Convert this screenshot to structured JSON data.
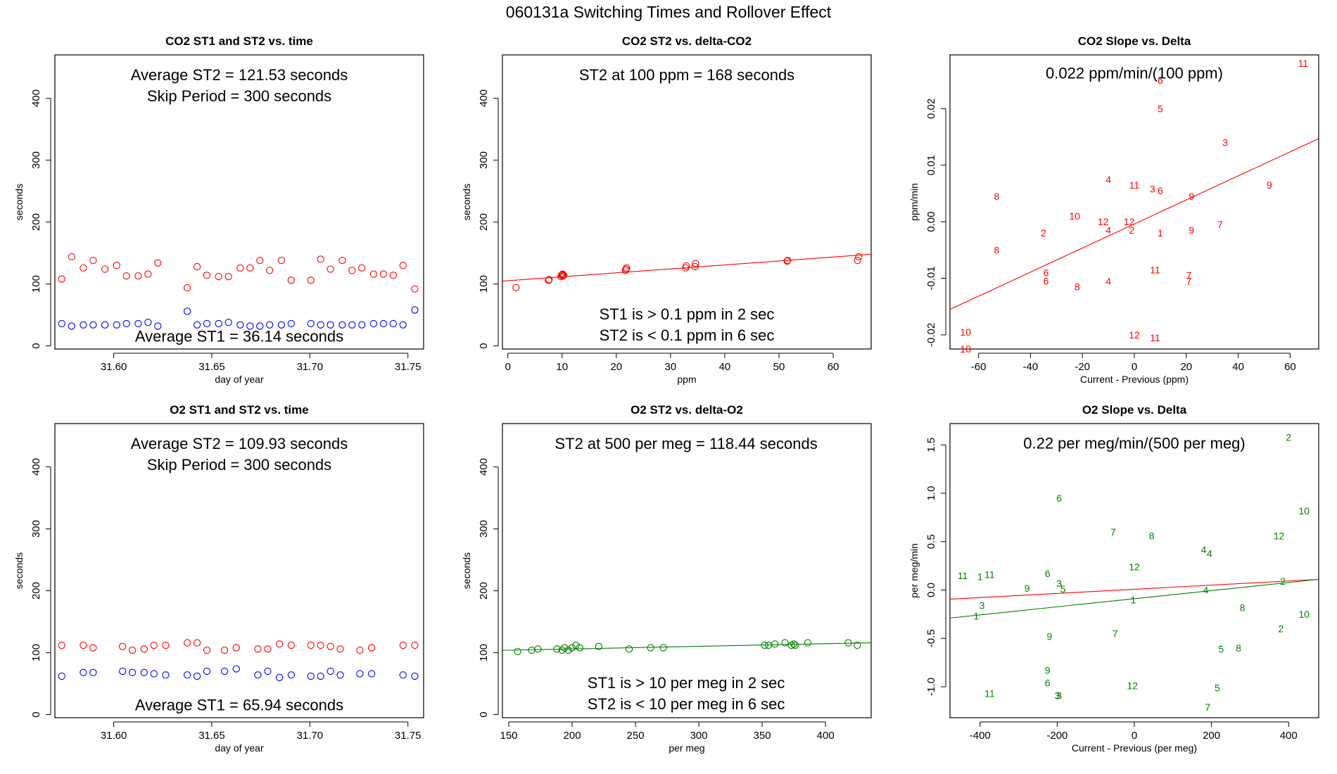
{
  "title": "060131a   Switching Times and Rollover Effect",
  "colors": {
    "red": "#ff0000",
    "blue": "#0000ff",
    "green": "#008000",
    "axis": "#000000"
  },
  "chart_data": [
    {
      "type": "scatter",
      "title": "CO2 ST1 and ST2 vs. time",
      "xlabel": "day of year",
      "ylabel": "seconds",
      "xlim": [
        31.57,
        31.758
      ],
      "ylim": [
        -5,
        470
      ],
      "xticks": [
        31.6,
        31.65,
        31.7,
        31.75
      ],
      "xtick_labels": [
        "31.60",
        "31.65",
        "31.70",
        "31.75"
      ],
      "yticks": [
        0,
        100,
        200,
        300,
        400
      ],
      "ytick_labels": [
        "0",
        "100",
        "200",
        "300",
        "400"
      ],
      "annotations": [
        {
          "text": "Average ST2 =  121.53  seconds",
          "x": 31.664,
          "y": 438
        },
        {
          "text": "Skip Period =  300  seconds",
          "x": 31.664,
          "y": 404
        },
        {
          "text": "Average ST1 =  36.14  seconds",
          "x": 31.664,
          "y": 16
        }
      ],
      "series": [
        {
          "marker": "circle",
          "color": "red",
          "x": [
            31.5735,
            31.5785,
            31.5845,
            31.5895,
            31.5955,
            31.6015,
            31.6065,
            31.6125,
            31.6175,
            31.6225,
            31.6375,
            31.6425,
            31.6475,
            31.6535,
            31.6585,
            31.6645,
            31.6695,
            31.6745,
            31.6795,
            31.6855,
            31.6905,
            31.7005,
            31.7055,
            31.7105,
            31.7165,
            31.7215,
            31.7265,
            31.7325,
            31.7375,
            31.7425,
            31.7475,
            31.7535
          ],
          "y": [
            108,
            144,
            126,
            138,
            124,
            130,
            113,
            113,
            116,
            134,
            94,
            128,
            114,
            112,
            112,
            126,
            126,
            138,
            122,
            138,
            106,
            106,
            140,
            124,
            138,
            122,
            126,
            116,
            116,
            114,
            130,
            92
          ]
        },
        {
          "marker": "circle",
          "color": "blue",
          "x": [
            31.5735,
            31.5785,
            31.5845,
            31.5895,
            31.5955,
            31.6015,
            31.6065,
            31.6125,
            31.6175,
            31.6225,
            31.6375,
            31.6425,
            31.6475,
            31.6535,
            31.6585,
            31.6645,
            31.6695,
            31.6745,
            31.6795,
            31.6855,
            31.6905,
            31.7005,
            31.7055,
            31.7105,
            31.7165,
            31.7215,
            31.7265,
            31.7325,
            31.7375,
            31.7425,
            31.7475,
            31.7535
          ],
          "y": [
            36,
            32,
            34,
            34,
            34,
            34,
            36,
            36,
            38,
            32,
            56,
            34,
            36,
            36,
            38,
            34,
            32,
            32,
            34,
            34,
            36,
            36,
            34,
            34,
            34,
            34,
            34,
            36,
            36,
            36,
            34,
            58
          ]
        }
      ]
    },
    {
      "type": "scatter",
      "title": "CO2 ST2 vs. delta-CO2",
      "xlabel": "ppm",
      "ylabel": "seconds",
      "xlim": [
        -1,
        67
      ],
      "ylim": [
        -5,
        470
      ],
      "xticks": [
        0,
        10,
        20,
        30,
        40,
        50,
        60
      ],
      "xtick_labels": [
        "0",
        "10",
        "20",
        "30",
        "40",
        "50",
        "60"
      ],
      "yticks": [
        0,
        100,
        200,
        300,
        400
      ],
      "ytick_labels": [
        "0",
        "100",
        "200",
        "300",
        "400"
      ],
      "annotations": [
        {
          "text": "ST2 at 100 ppm =  168  seconds",
          "x": 33,
          "y": 438
        },
        {
          "text": "ST1 is > 0.1 ppm in 2 sec",
          "x": 33,
          "y": 52
        },
        {
          "text": "ST2 is < 0.1 ppm in 6 sec",
          "x": 33,
          "y": 18
        }
      ],
      "series": [
        {
          "marker": "circle",
          "color": "red",
          "x": [
            1.5,
            7.5,
            7.6,
            9.8,
            9.9,
            10.0,
            10.1,
            10.2,
            10.3,
            21.7,
            21.8,
            21.9,
            32.8,
            32.9,
            34.5,
            34.6,
            51.5,
            51.6,
            64.5,
            64.7
          ],
          "y": [
            94,
            106,
            107,
            112,
            114,
            115,
            116,
            113,
            114,
            122,
            124,
            126,
            126,
            129,
            128,
            133,
            137,
            138,
            138,
            144
          ]
        }
      ],
      "fit_line": {
        "color": "red",
        "x": [
          -1,
          67
        ],
        "y": [
          104.6,
          148
        ]
      }
    },
    {
      "type": "scatter",
      "title": "CO2 Slope vs. Delta",
      "xlabel": "Current - Previous (ppm)",
      "ylabel": "ppm/min",
      "xlim": [
        -71,
        71
      ],
      "ylim": [
        -0.0225,
        0.0295
      ],
      "xticks": [
        -60,
        -40,
        -20,
        0,
        20,
        40,
        60
      ],
      "xtick_labels": [
        "-60",
        "-40",
        "-20",
        "0",
        "20",
        "40",
        "60"
      ],
      "yticks": [
        -0.02,
        -0.01,
        0.0,
        0.01,
        0.02
      ],
      "ytick_labels": [
        "-0.02",
        "-0.01",
        "0.00",
        "0.01",
        "0.02"
      ],
      "annotations": [
        {
          "text": "0.022  ppm/min/(100 ppm)",
          "x": 0,
          "y": 0.0263
        }
      ],
      "series": [
        {
          "marker": "label",
          "color": "red",
          "x": [
            65,
            10,
            10,
            35,
            -53,
            -10,
            0,
            7,
            10,
            -23,
            22,
            52,
            -53,
            -35,
            -12,
            -2,
            -10,
            -1,
            10,
            22,
            33,
            -34,
            -34,
            -22,
            -10,
            8,
            21,
            21,
            -65,
            -65,
            0,
            8
          ],
          "y": [
            0.028,
            0.025,
            0.02,
            0.014,
            0.0045,
            0.0075,
            0.0065,
            0.0058,
            0.0055,
            0.001,
            0.0045,
            0.0065,
            -0.005,
            -0.002,
            0.0,
            0.0,
            -0.0015,
            -0.0015,
            -0.002,
            -0.0015,
            -0.0005,
            -0.009,
            -0.0105,
            -0.0115,
            -0.0105,
            -0.0085,
            -0.0095,
            -0.0105,
            -0.0195,
            -0.0225,
            -0.02,
            -0.0205
          ],
          "labels": [
            "11",
            "6",
            "5",
            "3",
            "8",
            "4",
            "11",
            "3",
            "6",
            "10",
            "9",
            "9",
            "8",
            "2",
            "12",
            "12",
            "4",
            "2",
            "1",
            "9",
            "7",
            "6",
            "6",
            "8",
            "4",
            "11",
            "7",
            "7",
            "10",
            "10",
            "12",
            "11"
          ]
        }
      ],
      "fit_line": {
        "color": "red",
        "x": [
          -71,
          71
        ],
        "y": [
          -0.0155,
          0.0147
        ]
      }
    },
    {
      "type": "scatter",
      "title": "O2 ST1 and ST2 vs. time",
      "xlabel": "day of year",
      "ylabel": "seconds",
      "xlim": [
        31.57,
        31.758
      ],
      "ylim": [
        -5,
        470
      ],
      "xticks": [
        31.6,
        31.65,
        31.7,
        31.75
      ],
      "xtick_labels": [
        "31.60",
        "31.65",
        "31.70",
        "31.75"
      ],
      "yticks": [
        0,
        100,
        200,
        300,
        400
      ],
      "ytick_labels": [
        "0",
        "100",
        "200",
        "300",
        "400"
      ],
      "annotations": [
        {
          "text": "Average ST2 =  109.93  seconds",
          "x": 31.664,
          "y": 438
        },
        {
          "text": "Skip Period =  300  seconds",
          "x": 31.664,
          "y": 404
        },
        {
          "text": "Average ST1 =  65.94  seconds",
          "x": 31.664,
          "y": 16
        }
      ],
      "series": [
        {
          "marker": "circle",
          "color": "red",
          "x": [
            31.5735,
            31.5845,
            31.5895,
            31.6045,
            31.6095,
            31.6155,
            31.6205,
            31.6265,
            31.6375,
            31.6425,
            31.6475,
            31.6565,
            31.6625,
            31.6735,
            31.6785,
            31.6845,
            31.6905,
            31.7005,
            31.7055,
            31.7105,
            31.7155,
            31.7255,
            31.7315,
            31.7475,
            31.7535
          ],
          "y": [
            112,
            112,
            108,
            110,
            104,
            106,
            112,
            112,
            116,
            116,
            104,
            104,
            108,
            106,
            106,
            114,
            112,
            112,
            112,
            110,
            106,
            104,
            108,
            112,
            112
          ]
        },
        {
          "marker": "circle",
          "color": "blue",
          "x": [
            31.5735,
            31.5845,
            31.5895,
            31.6045,
            31.6095,
            31.6155,
            31.6205,
            31.6265,
            31.6375,
            31.6425,
            31.6475,
            31.6565,
            31.6625,
            31.6735,
            31.6785,
            31.6845,
            31.6905,
            31.7005,
            31.7055,
            31.7105,
            31.7155,
            31.7255,
            31.7315,
            31.7475,
            31.7535
          ],
          "y": [
            62,
            68,
            68,
            70,
            68,
            68,
            66,
            64,
            64,
            62,
            70,
            70,
            74,
            64,
            70,
            60,
            64,
            62,
            62,
            70,
            64,
            66,
            66,
            64,
            62
          ]
        }
      ]
    },
    {
      "type": "scatter",
      "title": "O2 ST2 vs. delta-O2",
      "xlabel": "per meg",
      "ylabel": "seconds",
      "xlim": [
        145,
        436
      ],
      "ylim": [
        -5,
        470
      ],
      "xticks": [
        150,
        200,
        250,
        300,
        350,
        400
      ],
      "xtick_labels": [
        "150",
        "200",
        "250",
        "300",
        "350",
        "400"
      ],
      "yticks": [
        0,
        100,
        200,
        300,
        400
      ],
      "ytick_labels": [
        "0",
        "100",
        "200",
        "300",
        "400"
      ],
      "annotations": [
        {
          "text": "ST2 at 500 per meg =  118.44  seconds",
          "x": 290,
          "y": 438
        },
        {
          "text": "ST1 is > 10 per meg in 2 sec",
          "x": 290,
          "y": 52
        },
        {
          "text": "ST2 is < 10 per meg in 6 sec",
          "x": 290,
          "y": 18
        }
      ],
      "series": [
        {
          "marker": "circle",
          "color": "green",
          "x": [
            157,
            168,
            173,
            188,
            192,
            194,
            197,
            200,
            203,
            206,
            221,
            245,
            262,
            272,
            352,
            355,
            360,
            368,
            373,
            375,
            376,
            386,
            418,
            425
          ],
          "y": [
            102,
            104,
            106,
            106,
            104,
            108,
            104,
            108,
            112,
            108,
            110,
            106,
            108,
            108,
            112,
            112,
            114,
            116,
            112,
            114,
            112,
            116,
            116,
            112
          ]
        }
      ],
      "fit_line": {
        "color": "green",
        "x": [
          145,
          436
        ],
        "y": [
          103.8,
          116
        ]
      }
    },
    {
      "type": "scatter",
      "title": "O2 Slope vs. Delta",
      "xlabel": "Current - Previous (per meg)",
      "ylabel": "per meg/min",
      "xlim": [
        -478,
        478
      ],
      "ylim": [
        -1.32,
        1.72
      ],
      "xticks": [
        -400,
        -200,
        0,
        200,
        400
      ],
      "xtick_labels": [
        "-400",
        "-200",
        "0",
        "200",
        "400"
      ],
      "yticks": [
        -1.0,
        -0.5,
        0.0,
        0.5,
        1.0,
        1.5
      ],
      "ytick_labels": [
        "-1.0",
        "-0.5",
        "0.0",
        "0.5",
        "1.0",
        "1.5"
      ],
      "annotations": [
        {
          "text": "0.22  per meg/min/(500 per meg)",
          "x": 0,
          "y": 1.52
        },
        {
          "text": "1",
          "x": -3,
          "y": -0.08
        }
      ],
      "series": [
        {
          "marker": "label",
          "color": "green",
          "x": [
            400,
            -195,
            440,
            -55,
            45,
            375,
            180,
            195,
            0,
            -445,
            -400,
            -375,
            -225,
            -195,
            -185,
            -278,
            -395,
            -410,
            -220,
            185,
            385,
            280,
            440,
            380,
            -50,
            225,
            270,
            -225,
            -225,
            -200,
            -375,
            -5,
            215,
            -195,
            190
          ],
          "y": [
            1.58,
            0.95,
            0.82,
            0.6,
            0.56,
            0.56,
            0.42,
            0.38,
            0.24,
            0.15,
            0.14,
            0.16,
            0.17,
            0.07,
            0.01,
            0.02,
            -0.16,
            -0.27,
            -0.48,
            0.0,
            0.09,
            -0.18,
            -0.25,
            -0.4,
            -0.45,
            -0.61,
            -0.6,
            -0.83,
            -0.96,
            -1.09,
            -1.07,
            -0.99,
            -1.01,
            -1.09,
            -1.21
          ],
          "labels": [
            "2",
            "6",
            "10",
            "7",
            "8",
            "12",
            "4",
            "4",
            "12",
            "11",
            "1",
            "11",
            "6",
            "3",
            "5",
            "9",
            "3",
            "1",
            "9",
            "4",
            "2",
            "8",
            "10",
            "2",
            "7",
            "5",
            "8",
            "9",
            "6",
            "3",
            "11",
            "12",
            "5",
            "3",
            "7"
          ]
        }
      ],
      "fit_lines": [
        {
          "color": "red",
          "x": [
            -478,
            478
          ],
          "y": [
            -0.095,
            0.11
          ]
        },
        {
          "color": "green",
          "x": [
            -478,
            478
          ],
          "y": [
            -0.29,
            0.11
          ]
        }
      ]
    }
  ]
}
